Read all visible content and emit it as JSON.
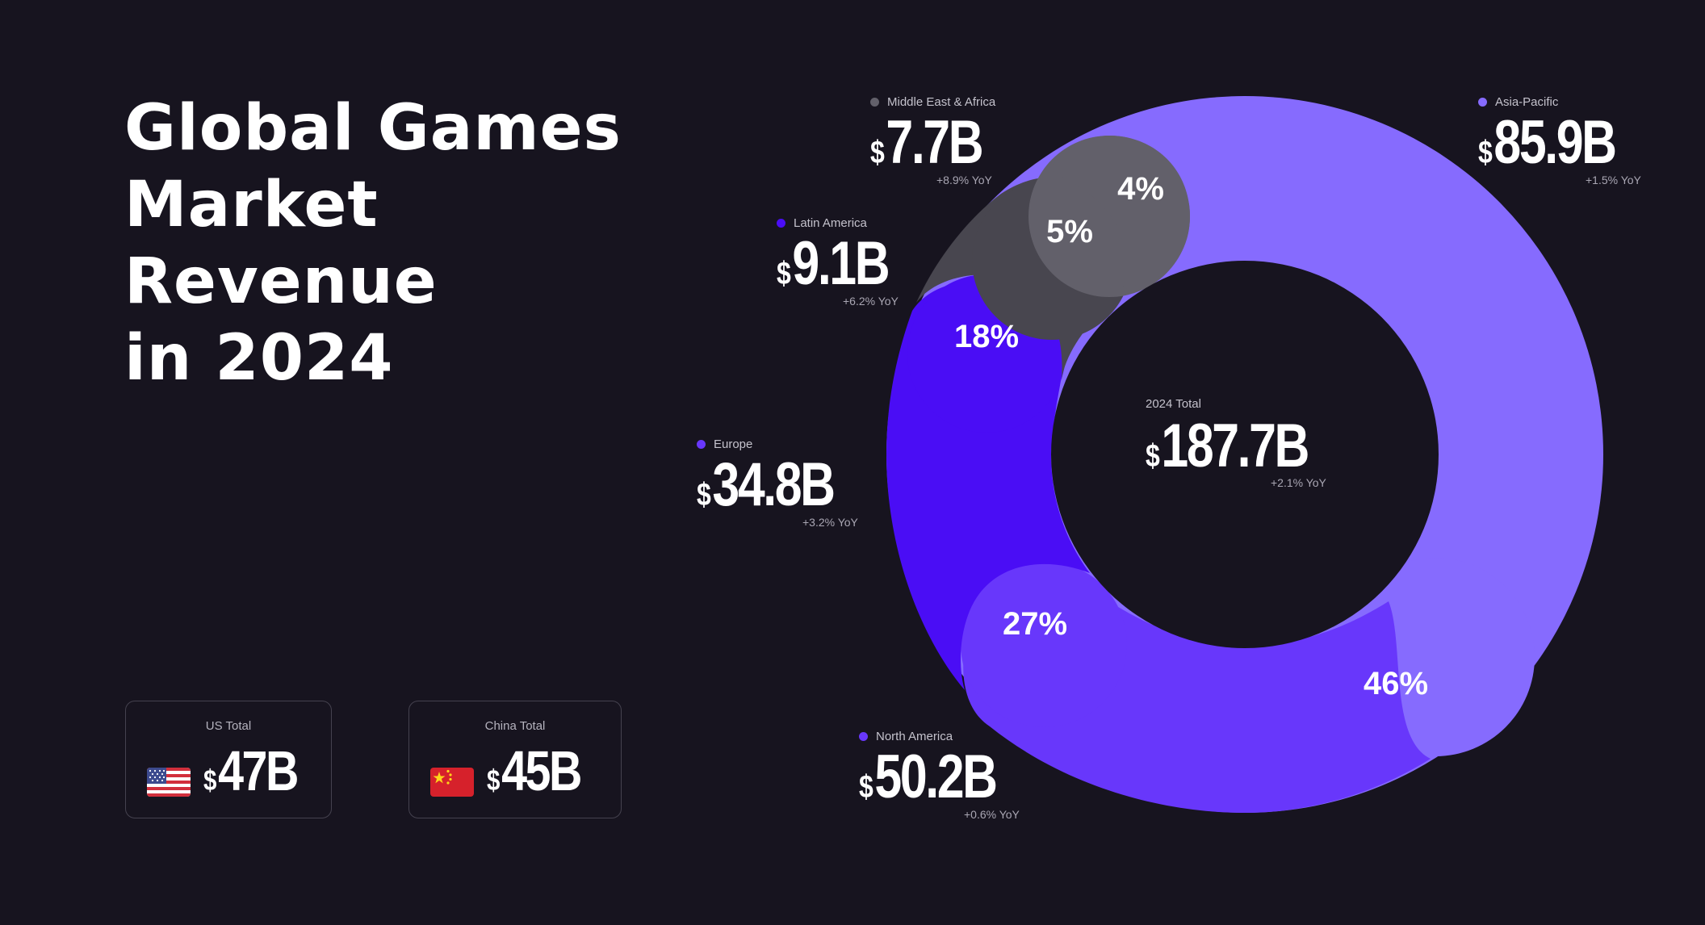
{
  "title": {
    "line1": "Global Games",
    "line2": "Market Revenue",
    "line3": "in 2024"
  },
  "currency_symbol": "$",
  "country_cards": [
    {
      "label": "US Total",
      "value": "47B",
      "flag": "us-flag"
    },
    {
      "label": "China Total",
      "value": "45B",
      "flag": "china-flag"
    }
  ],
  "total": {
    "label": "2024 Total",
    "value": "187.7B",
    "yoy": "+2.1% YoY"
  },
  "regions": {
    "asia_pacific": {
      "label": "Asia-Pacific",
      "value": "85.9B",
      "yoy": "+1.5% YoY",
      "pct": "46%"
    },
    "north_america": {
      "label": "North America",
      "value": "50.2B",
      "yoy": "+0.6% YoY",
      "pct": "27%"
    },
    "europe": {
      "label": "Europe",
      "value": "34.8B",
      "yoy": "+3.2% YoY",
      "pct": "18%"
    },
    "latin_america": {
      "label": "Latin America",
      "value": "9.1B",
      "yoy": "+6.2% YoY",
      "pct": "5%"
    },
    "mea": {
      "label": "Middle East & Africa",
      "value": "7.7B",
      "yoy": "+8.9% YoY",
      "pct": "4%"
    }
  },
  "colors": {
    "background": "#17141f",
    "asia_pacific": "#866bfe",
    "north_america": "#6837fb",
    "europe": "#4a0df5",
    "latin_america": "#48464f",
    "mea": "#62606a"
  },
  "chart_data": {
    "type": "pie",
    "title": "Global Games Market Revenue in 2024",
    "unit": "USD billions",
    "categories": [
      "Asia-Pacific",
      "North America",
      "Europe",
      "Latin America",
      "Middle East & Africa"
    ],
    "values": [
      85.9,
      50.2,
      34.8,
      9.1,
      7.7
    ],
    "percentages": [
      46,
      27,
      18,
      5,
      4
    ],
    "yoy_growth_pct": [
      1.5,
      0.6,
      3.2,
      6.2,
      8.9
    ],
    "total": 187.7,
    "total_yoy_pct": 2.1,
    "donut": true
  }
}
